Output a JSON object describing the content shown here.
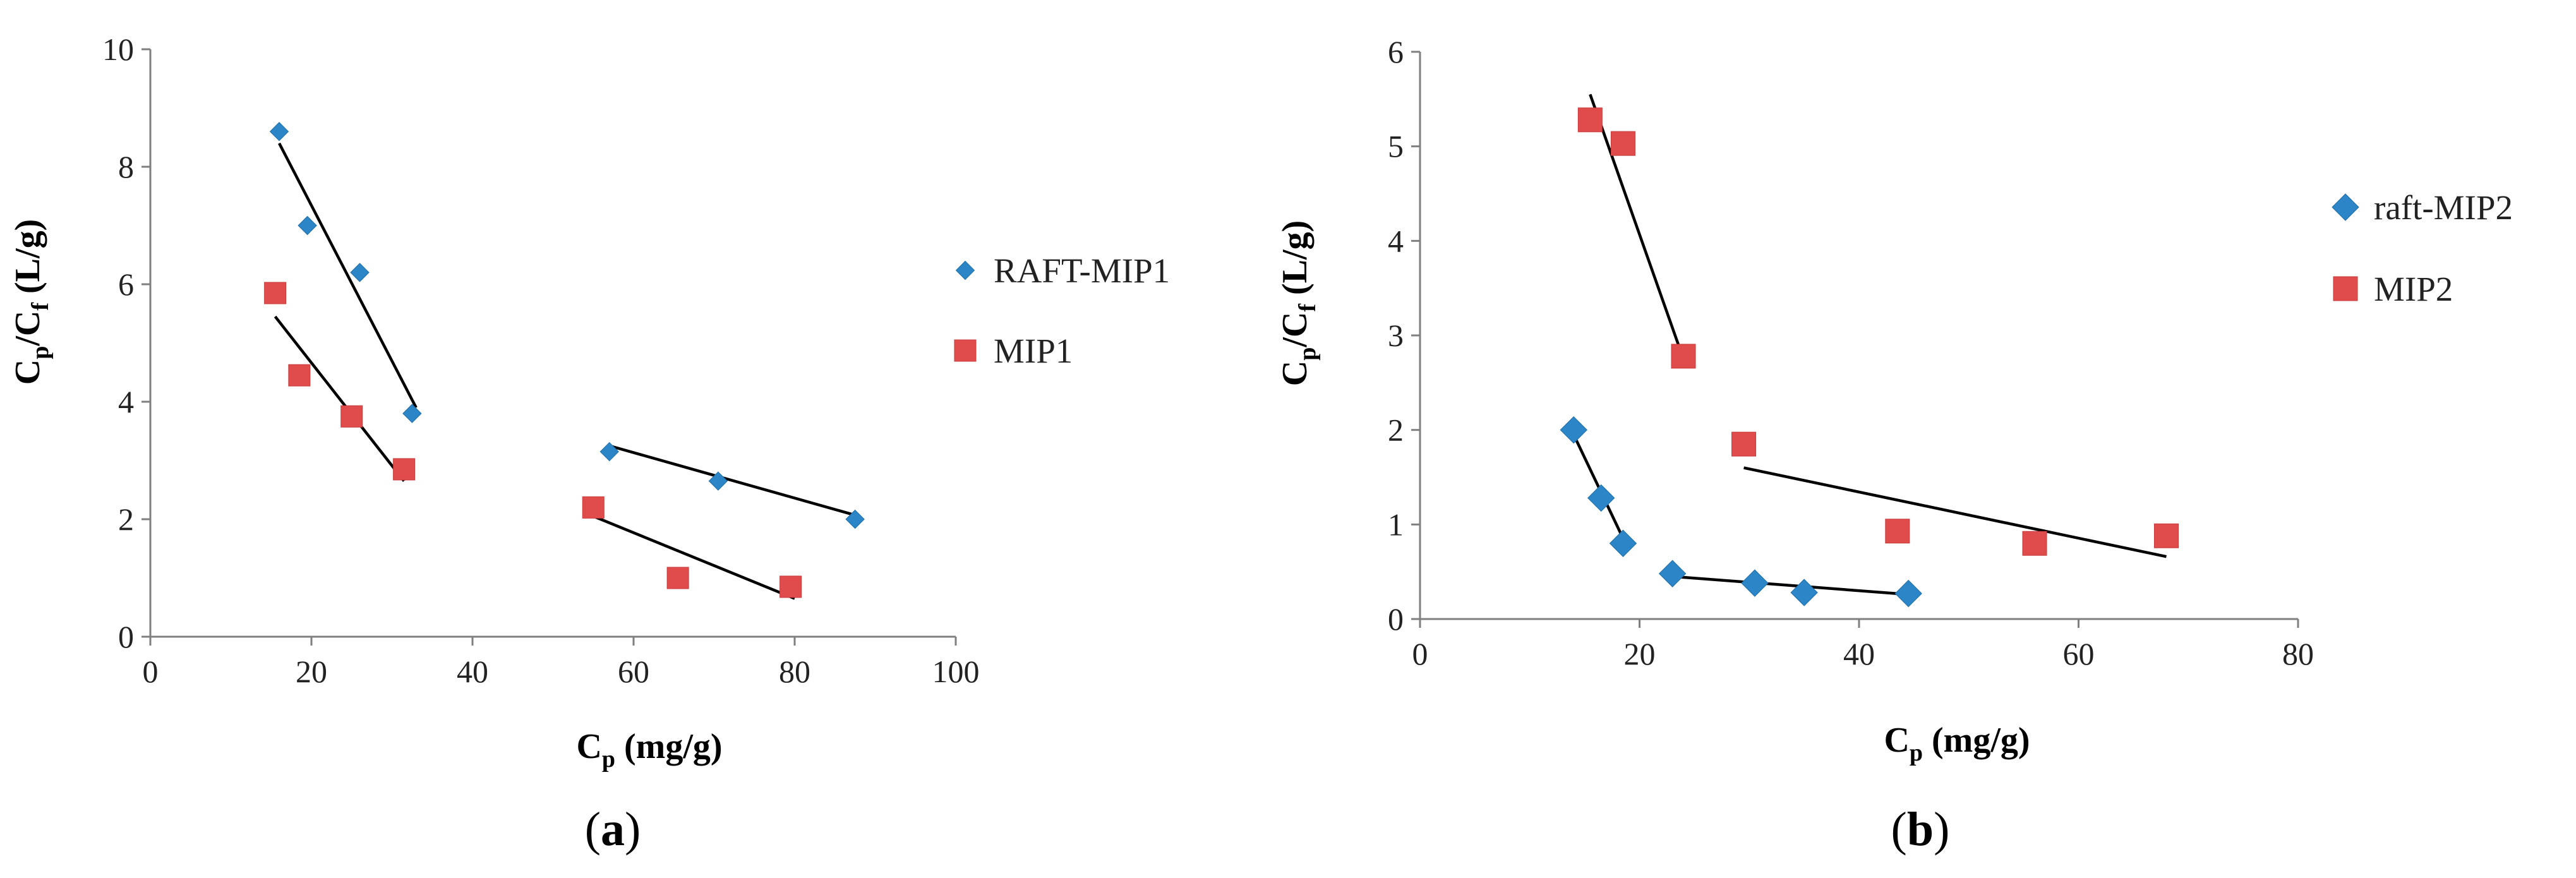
{
  "chart_data": [
    {
      "type": "scatter",
      "panel_label": "a",
      "title": "",
      "xlabel": {
        "main": "C",
        "sub": "p",
        "rest": " (mg/g)"
      },
      "ylabel": {
        "parts": [
          {
            "t": "C"
          },
          {
            "t": "p",
            "sub": true
          },
          {
            "t": "/C"
          },
          {
            "t": "f",
            "sub": true
          },
          {
            "t": " (L/g)"
          }
        ]
      },
      "xlim": [
        0,
        100
      ],
      "ylim": [
        0,
        10
      ],
      "xticks": [
        0,
        20,
        40,
        60,
        80,
        100
      ],
      "yticks": [
        0,
        2,
        4,
        6,
        8,
        10
      ],
      "grid": false,
      "legend_position": "right",
      "series": [
        {
          "name": "RAFT-MIP1",
          "marker": "diamond",
          "color": "#2B85C6",
          "points": [
            [
              16,
              8.6
            ],
            [
              19.5,
              7.0
            ],
            [
              26,
              6.2
            ],
            [
              32.5,
              3.8
            ],
            [
              57,
              3.15
            ],
            [
              70.5,
              2.65
            ],
            [
              87.5,
              2.0
            ]
          ],
          "trendlines": [
            [
              [
                16,
                8.4
              ],
              [
                33,
                3.9
              ]
            ],
            [
              [
                57,
                3.25
              ],
              [
                88,
                2.05
              ]
            ]
          ]
        },
        {
          "name": "MIP1",
          "marker": "square",
          "color": "#E04B4B",
          "points": [
            [
              15.5,
              5.85
            ],
            [
              18.5,
              4.45
            ],
            [
              25,
              3.75
            ],
            [
              31.5,
              2.85
            ],
            [
              55,
              2.2
            ],
            [
              65.5,
              1.0
            ],
            [
              79.5,
              0.85
            ]
          ],
          "trendlines": [
            [
              [
                15.5,
                5.45
              ],
              [
                31.5,
                2.65
              ]
            ],
            [
              [
                55,
                2.05
              ],
              [
                80,
                0.65
              ]
            ]
          ]
        }
      ]
    },
    {
      "type": "scatter",
      "panel_label": "b",
      "title": "",
      "xlabel": {
        "main": "C",
        "sub": "p",
        "rest": " (mg/g)"
      },
      "ylabel": {
        "parts": [
          {
            "t": "C"
          },
          {
            "t": "p",
            "sub": true
          },
          {
            "t": "/C"
          },
          {
            "t": "f",
            "sub": true
          },
          {
            "t": " (L/g)"
          }
        ]
      },
      "xlim": [
        0,
        80
      ],
      "ylim": [
        0,
        6
      ],
      "xticks": [
        0,
        20,
        40,
        60,
        80
      ],
      "yticks": [
        0,
        1,
        2,
        3,
        4,
        5,
        6
      ],
      "grid": false,
      "legend_position": "right",
      "series": [
        {
          "name": "raft-MIP2",
          "marker": "diamond",
          "color": "#2B85C6",
          "points": [
            [
              14,
              2.0
            ],
            [
              16.5,
              1.28
            ],
            [
              18.5,
              0.8
            ],
            [
              23,
              0.48
            ],
            [
              30.5,
              0.38
            ],
            [
              35,
              0.28
            ],
            [
              44.5,
              0.27
            ]
          ],
          "trendlines": [
            [
              [
                14,
                1.95
              ],
              [
                18.8,
                0.78
              ]
            ],
            [
              [
                23,
                0.45
              ],
              [
                44.5,
                0.26
              ]
            ]
          ]
        },
        {
          "name": "MIP2",
          "marker": "square",
          "color": "#E04B4B",
          "points": [
            [
              15.5,
              5.28
            ],
            [
              18.5,
              5.03
            ],
            [
              24,
              2.78
            ],
            [
              29.5,
              1.85
            ],
            [
              43.5,
              0.93
            ],
            [
              56,
              0.8
            ],
            [
              68,
              0.88
            ]
          ],
          "trendlines": [
            [
              [
                15.5,
                5.55
              ],
              [
                24,
                2.75
              ]
            ],
            [
              [
                29.5,
                1.6
              ],
              [
                68,
                0.66
              ]
            ]
          ]
        }
      ]
    }
  ]
}
